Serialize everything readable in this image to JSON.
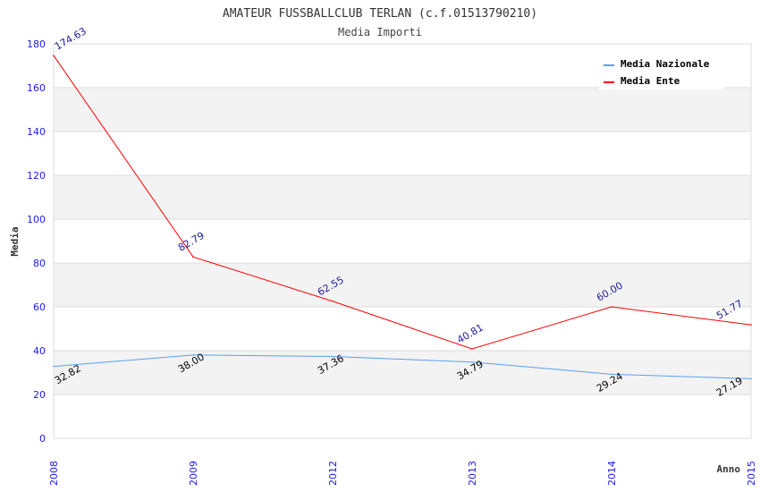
{
  "chart_data": {
    "type": "line",
    "title": "AMATEUR FUSSBALLCLUB TERLAN (c.f.01513790210)",
    "subtitle": "Media Importi",
    "xlabel": "Anno",
    "ylabel": "Media",
    "categories": [
      "2008",
      "2009",
      "2012",
      "2013",
      "2014",
      "2015"
    ],
    "ylim": [
      0,
      180
    ],
    "yticks": [
      0,
      20,
      40,
      60,
      80,
      100,
      120,
      140,
      160,
      180
    ],
    "grid": true,
    "legend_position": "top-right",
    "series": [
      {
        "name": "Media Nazionale",
        "color": "#5aa0f0",
        "label_color": "#000000",
        "values": [
          32.82,
          38.0,
          37.36,
          34.79,
          29.24,
          27.19
        ],
        "labels": [
          "32.82",
          "38.00",
          "37.36",
          "34.79",
          "29.24",
          "27.19"
        ]
      },
      {
        "name": "Media Ente",
        "color": "#ff0000",
        "label_color": "#1a1a99",
        "values": [
          174.63,
          82.79,
          62.55,
          40.81,
          60.0,
          51.77
        ],
        "labels": [
          "174.63",
          "82.79",
          "62.55",
          "40.81",
          "60.00",
          "51.77"
        ]
      }
    ]
  }
}
